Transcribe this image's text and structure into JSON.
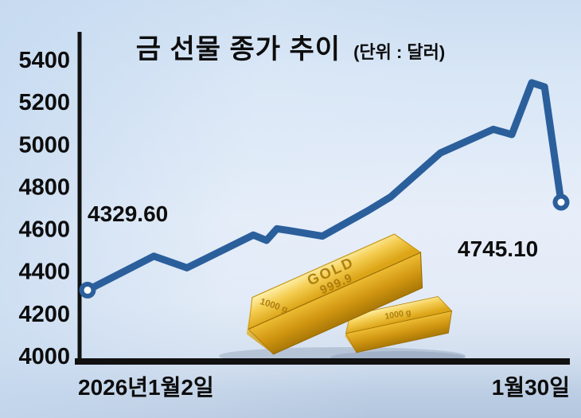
{
  "page": {
    "title": "금 선물 종가 추이",
    "unit_label": "(단위 : 달러)"
  },
  "colors": {
    "line": "#2b5f9c",
    "axis": "#111111",
    "text": "#0d0d0d",
    "background_top": "#d4e3f4",
    "background_bottom": "#b3c6de",
    "gold_light": "#fff0a8",
    "gold_mid": "#ecbe36",
    "gold_dark": "#a97807"
  },
  "chart_data": {
    "type": "line",
    "title": "금 선물 종가 추이",
    "unit": "달러",
    "xlabel": "",
    "ylabel": "",
    "ylim": [
      4000,
      5400
    ],
    "y_ticks": [
      5400,
      5200,
      5000,
      4800,
      4600,
      4400,
      4200,
      4000
    ],
    "grid": false,
    "legend": "none",
    "x_axis_start_label": "2026년1월2일",
    "x_axis_end_label": "1월30일",
    "annotations": {
      "first_value": "4329.60",
      "last_value": "4745.10"
    },
    "series": [
      {
        "name": "금 선물 종가",
        "points": [
          {
            "x": 0.0,
            "v": 4329.6
          },
          {
            "x": 0.14,
            "v": 4490
          },
          {
            "x": 0.21,
            "v": 4435
          },
          {
            "x": 0.35,
            "v": 4590
          },
          {
            "x": 0.378,
            "v": 4565
          },
          {
            "x": 0.4,
            "v": 4620
          },
          {
            "x": 0.424,
            "v": 4612
          },
          {
            "x": 0.496,
            "v": 4585
          },
          {
            "x": 0.592,
            "v": 4705
          },
          {
            "x": 0.64,
            "v": 4770
          },
          {
            "x": 0.745,
            "v": 4978
          },
          {
            "x": 0.857,
            "v": 5090
          },
          {
            "x": 0.896,
            "v": 5065
          },
          {
            "x": 0.938,
            "v": 5310
          },
          {
            "x": 0.965,
            "v": 5290
          },
          {
            "x": 1.0,
            "v": 4745.1
          }
        ]
      }
    ]
  },
  "gold_bars": {
    "engraving_title": "GOLD",
    "engraving_fineness": "999.9",
    "weight_large_bar": "1000 g",
    "weight_small_bar": "1000 g"
  }
}
